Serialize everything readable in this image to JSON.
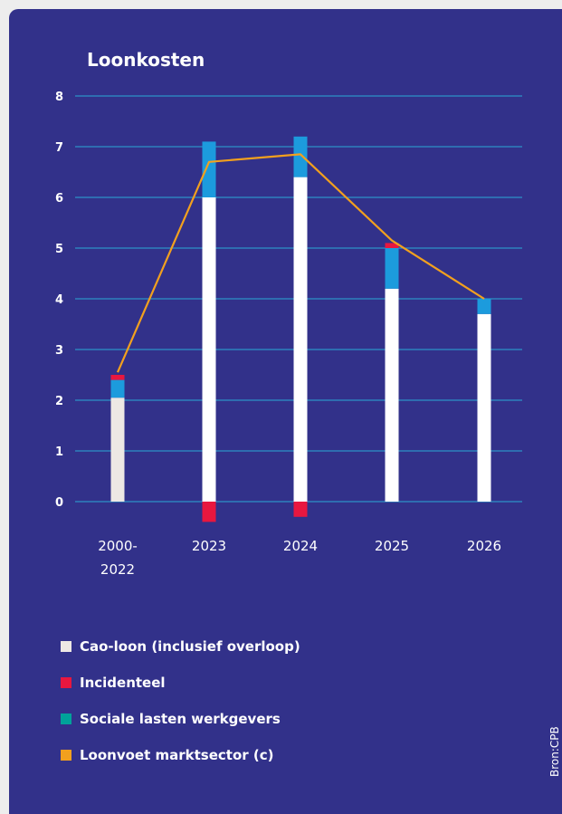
{
  "chart_data": {
    "type": "bar",
    "title": "Loonkosten",
    "categories": [
      [
        "2000-",
        "2022"
      ],
      [
        "2023"
      ],
      [
        "2024"
      ],
      [
        "2025"
      ],
      [
        "2026"
      ]
    ],
    "ylim": [
      0,
      8
    ],
    "yticks": [
      0,
      1,
      2,
      3,
      4,
      5,
      6,
      7,
      8
    ],
    "grid": true,
    "series": [
      {
        "name": "Cao-loon (inclusief overloop)",
        "kind": "bar",
        "values": [
          2.05,
          6.0,
          6.4,
          4.2,
          3.7
        ]
      },
      {
        "name": "Incidenteel",
        "kind": "bar",
        "values": [
          0.1,
          -0.4,
          -0.3,
          0.1,
          0.0
        ]
      },
      {
        "name": "Sociale lasten werkgevers",
        "kind": "bar",
        "values": [
          0.35,
          1.1,
          0.8,
          0.8,
          0.3
        ]
      },
      {
        "name": "Loonvoet marktsector (c)",
        "kind": "line",
        "values": [
          2.55,
          6.7,
          6.85,
          5.15,
          4.0
        ]
      }
    ],
    "colors": {
      "background": "#32318a",
      "grid": "#29a9d6",
      "cao_first": "#ede8e4",
      "cao": "#ffffff",
      "incidenteel": "#e8173f",
      "sociale_lasten_bar": "#1c9bdd",
      "sociale_lasten_legend": "#00a29a",
      "loonvoet": "#f2a01e"
    },
    "legend": {
      "position": "bottom-left",
      "items": [
        {
          "label": "Cao-loon (inclusief overloop)",
          "color": "#ede8e4"
        },
        {
          "label": "Incidenteel",
          "color": "#e8173f"
        },
        {
          "label": "Sociale lasten werkgevers",
          "color": "#00a29a"
        },
        {
          "label": "Loonvoet marktsector (c)",
          "color": "#f2a01e"
        }
      ]
    },
    "source": "Bron:CPB"
  }
}
